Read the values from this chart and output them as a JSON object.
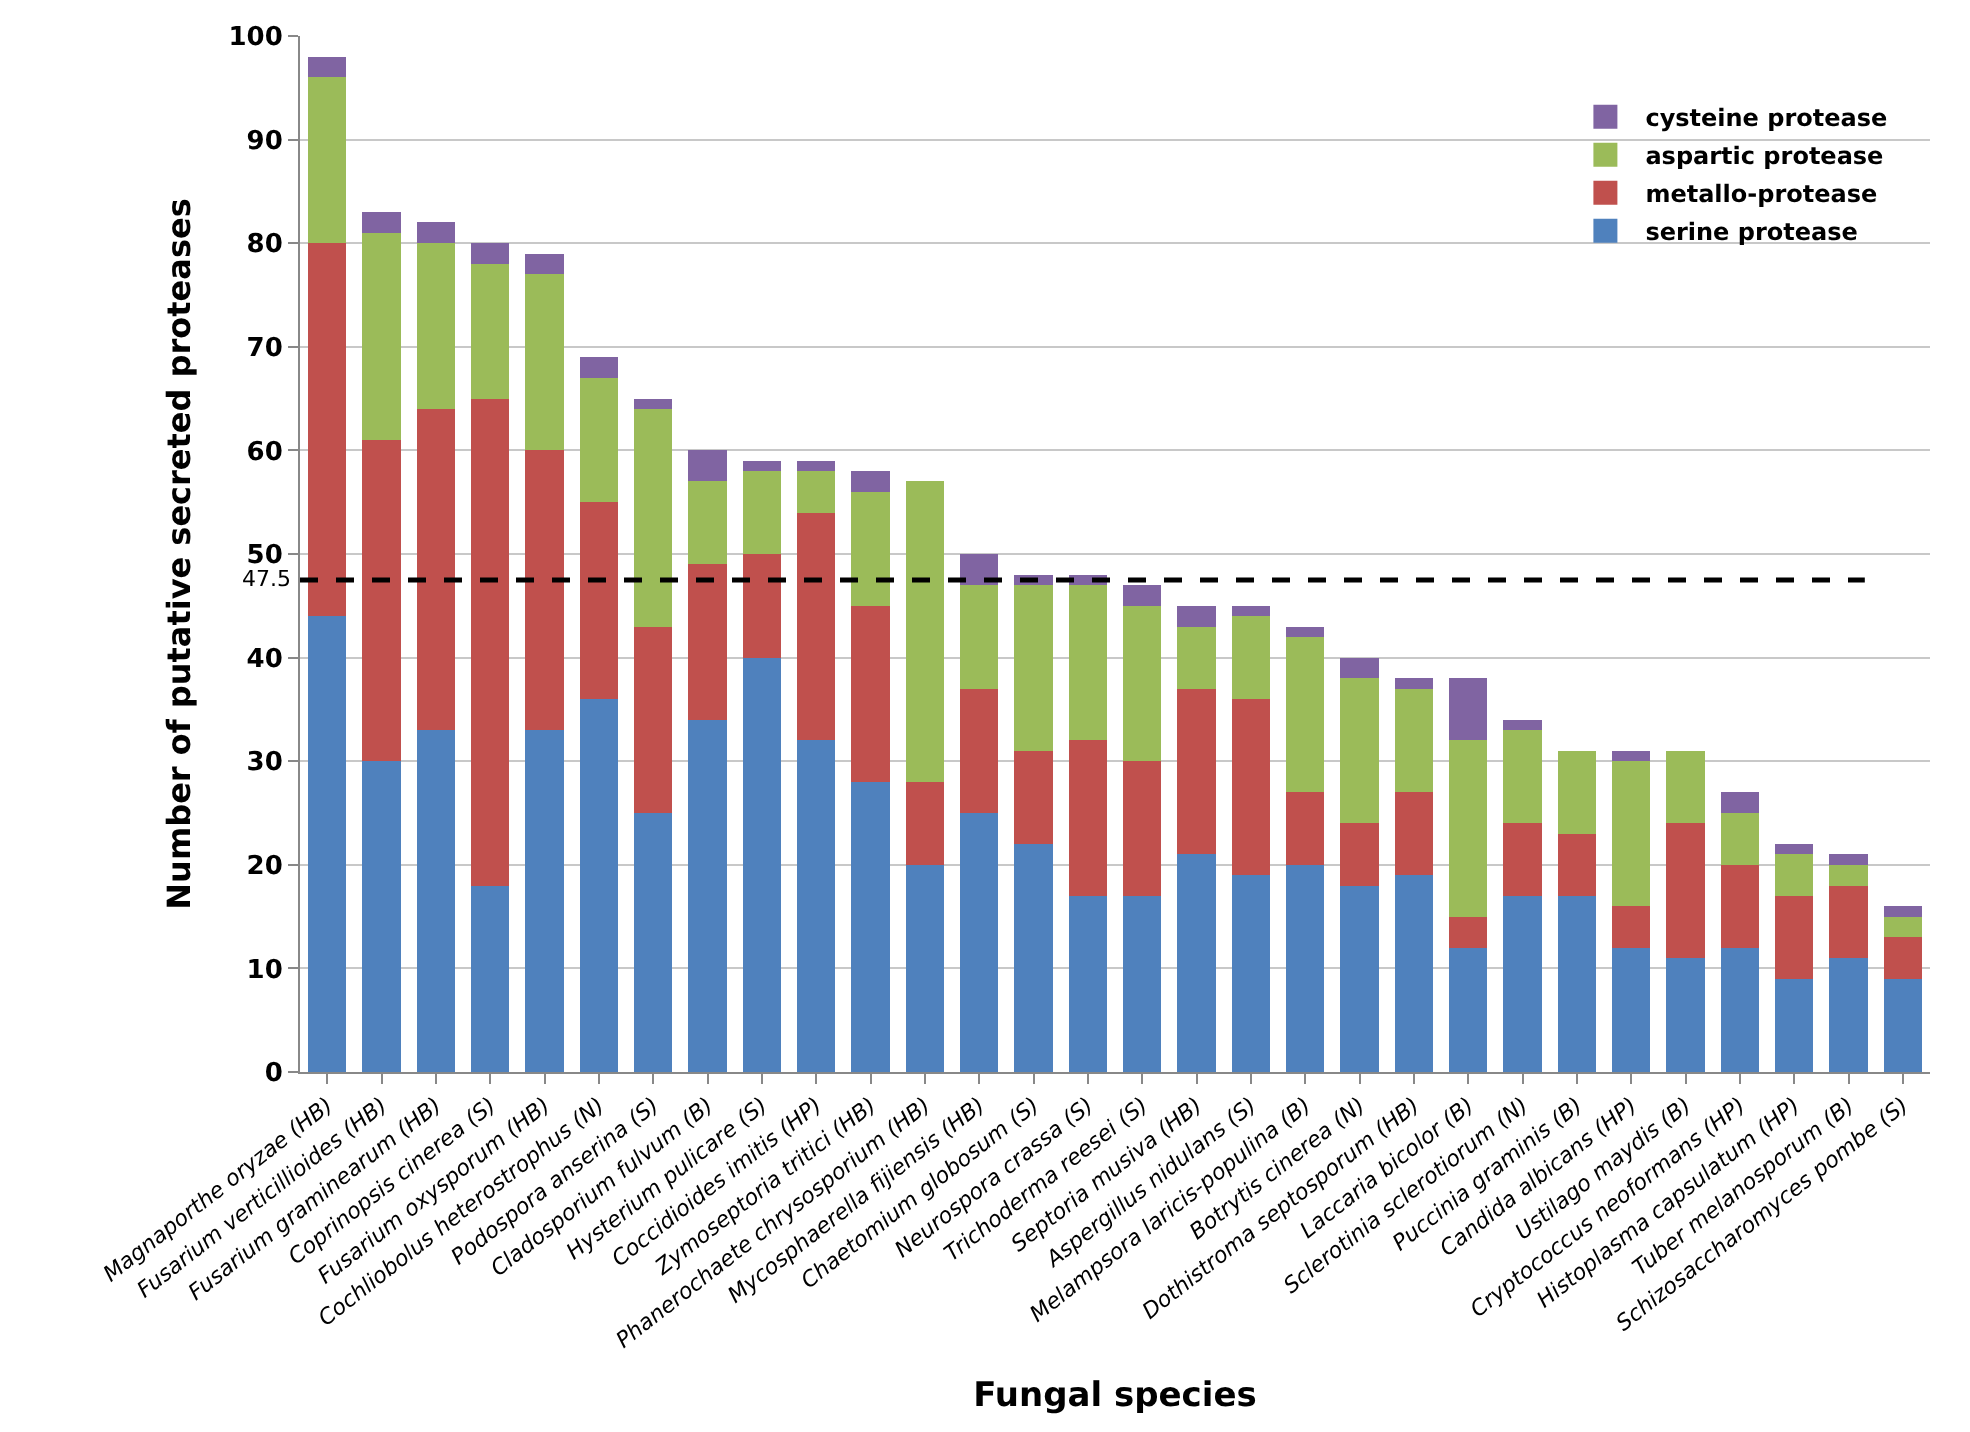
{
  "chart_data": {
    "type": "bar",
    "stacked": true,
    "xlabel": "Fungal species",
    "ylabel": "Number of putative secreted proteases",
    "categories": [
      "Magnaporthe oryzae (HB)",
      "Fusarium verticillioides (HB)",
      "Fusarium graminearum (HB)",
      "Coprinopsis cinerea (S)",
      "Fusarium oxysporum (HB)",
      "Cochliobolus heterostrophus (N)",
      "Podospora anserina (S)",
      "Cladosporium fulvum (B)",
      "Hysterium pulicare (S)",
      "Coccidioides imitis (HP)",
      "Zymoseptoria tritici (HB)",
      "Phanerochaete chrysosporium (HB)",
      "Mycosphaerella fijiensis (HB)",
      "Chaetomium globosum (S)",
      "Neurospora crassa (S)",
      "Trichoderma reesei (S)",
      "Septoria musiva (HB)",
      "Aspergillus nidulans (S)",
      "Melampsora laricis-populina (B)",
      "Botrytis cinerea (N)",
      "Dothistroma septosporum (HB)",
      "Laccaria bicolor (B)",
      "Sclerotinia sclerotiorum (N)",
      "Puccinia graminis (B)",
      "Candida albicans (HP)",
      "Ustilago maydis (B)",
      "Cryptococcus neoformans (HP)",
      "Histoplasma capsulatum (HP)",
      "Tuber melanosporum (B)",
      "Schizosaccharomyces pombe (S)"
    ],
    "series": [
      {
        "name": "serine protease",
        "color": "#4f81bd",
        "values": [
          44,
          30,
          33,
          18,
          33,
          36,
          25,
          34,
          40,
          32,
          28,
          20,
          25,
          22,
          17,
          17,
          21,
          19,
          20,
          18,
          19,
          12,
          17,
          17,
          12,
          11,
          12,
          9,
          11,
          9
        ]
      },
      {
        "name": "metallo-protease",
        "color": "#c0504d",
        "values": [
          36,
          31,
          31,
          47,
          27,
          19,
          18,
          15,
          10,
          22,
          17,
          8,
          12,
          9,
          15,
          13,
          16,
          17,
          7,
          6,
          8,
          3,
          7,
          6,
          4,
          13,
          8,
          8,
          7,
          4
        ]
      },
      {
        "name": "aspartic protease",
        "color": "#9bbb59",
        "values": [
          16,
          20,
          16,
          13,
          17,
          12,
          21,
          8,
          8,
          4,
          11,
          29,
          10,
          16,
          15,
          15,
          6,
          8,
          15,
          14,
          10,
          17,
          9,
          8,
          14,
          7,
          5,
          4,
          2,
          2
        ]
      },
      {
        "name": "cysteine protease",
        "color": "#8064a2",
        "values": [
          2,
          2,
          2,
          2,
          2,
          2,
          1,
          3,
          1,
          1,
          2,
          0,
          3,
          1,
          1,
          2,
          2,
          1,
          1,
          2,
          1,
          6,
          1,
          0,
          1,
          0,
          2,
          1,
          1,
          1
        ]
      }
    ],
    "ylim": [
      0,
      100
    ],
    "yticks": [
      0,
      10,
      20,
      30,
      40,
      50,
      60,
      70,
      80,
      90,
      100
    ],
    "grid": "y",
    "legend": "top right",
    "ref_lines": [
      {
        "axis": "y",
        "value": 47.5,
        "label": "47.5",
        "color": "#000000",
        "line_style": "dashed"
      }
    ]
  }
}
